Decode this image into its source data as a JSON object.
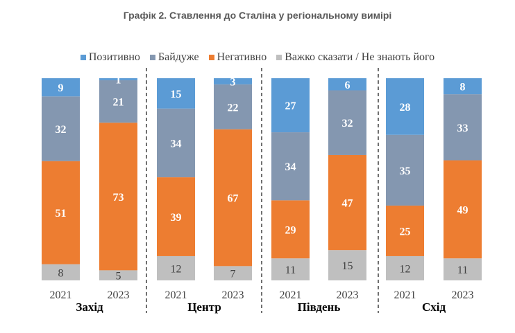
{
  "chart_data": {
    "type": "bar",
    "stacked": true,
    "title": "Графік 2. Ставлення до Сталіна у регіональному вимірі",
    "legend_position": "top",
    "grid": false,
    "groups": [
      "Захід",
      "Центр",
      "Південь",
      "Схід"
    ],
    "categories": [
      "2021",
      "2023",
      "2021",
      "2023",
      "2021",
      "2023",
      "2021",
      "2023"
    ],
    "series": [
      {
        "name": "Позитивно",
        "color": "#5B9BD5",
        "values": [
          9,
          1,
          15,
          3,
          27,
          6,
          28,
          8
        ]
      },
      {
        "name": "Байдуже",
        "color": "#8497B0",
        "values": [
          32,
          21,
          34,
          22,
          34,
          32,
          35,
          33
        ]
      },
      {
        "name": "Негативно",
        "color": "#ED7D31",
        "values": [
          51,
          73,
          39,
          67,
          29,
          47,
          25,
          49
        ]
      },
      {
        "name": "Важко сказати / Не знають його",
        "color": "#BFBFBF",
        "values": [
          8,
          5,
          12,
          7,
          11,
          15,
          12,
          11
        ]
      }
    ]
  }
}
